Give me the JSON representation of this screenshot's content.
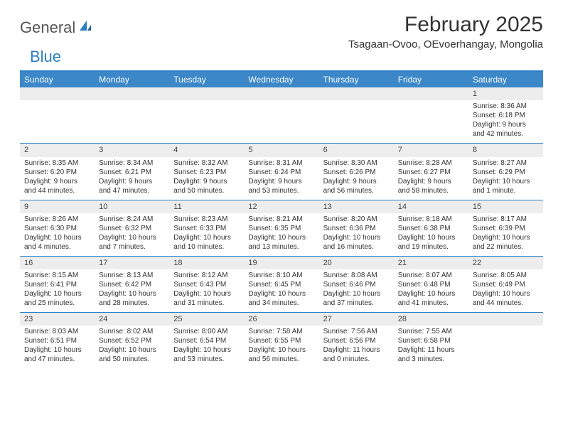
{
  "brand": {
    "part1": "General",
    "part2": "Blue"
  },
  "title": "February 2025",
  "location": "Tsagaan-Ovoo, OEvoerhangay, Mongolia",
  "colors": {
    "accent": "#2a7fc7",
    "header_bg": "#3b87c8",
    "daynum_bg": "#ededed",
    "text": "#333333",
    "background": "#ffffff"
  },
  "daynames": [
    "Sunday",
    "Monday",
    "Tuesday",
    "Wednesday",
    "Thursday",
    "Friday",
    "Saturday"
  ],
  "weeks": [
    [
      null,
      null,
      null,
      null,
      null,
      null,
      {
        "n": "1",
        "sr": "Sunrise: 8:36 AM",
        "ss": "Sunset: 6:18 PM",
        "dl": "Daylight: 9 hours and 42 minutes."
      }
    ],
    [
      {
        "n": "2",
        "sr": "Sunrise: 8:35 AM",
        "ss": "Sunset: 6:20 PM",
        "dl": "Daylight: 9 hours and 44 minutes."
      },
      {
        "n": "3",
        "sr": "Sunrise: 8:34 AM",
        "ss": "Sunset: 6:21 PM",
        "dl": "Daylight: 9 hours and 47 minutes."
      },
      {
        "n": "4",
        "sr": "Sunrise: 8:32 AM",
        "ss": "Sunset: 6:23 PM",
        "dl": "Daylight: 9 hours and 50 minutes."
      },
      {
        "n": "5",
        "sr": "Sunrise: 8:31 AM",
        "ss": "Sunset: 6:24 PM",
        "dl": "Daylight: 9 hours and 53 minutes."
      },
      {
        "n": "6",
        "sr": "Sunrise: 8:30 AM",
        "ss": "Sunset: 6:26 PM",
        "dl": "Daylight: 9 hours and 56 minutes."
      },
      {
        "n": "7",
        "sr": "Sunrise: 8:28 AM",
        "ss": "Sunset: 6:27 PM",
        "dl": "Daylight: 9 hours and 58 minutes."
      },
      {
        "n": "8",
        "sr": "Sunrise: 8:27 AM",
        "ss": "Sunset: 6:29 PM",
        "dl": "Daylight: 10 hours and 1 minute."
      }
    ],
    [
      {
        "n": "9",
        "sr": "Sunrise: 8:26 AM",
        "ss": "Sunset: 6:30 PM",
        "dl": "Daylight: 10 hours and 4 minutes."
      },
      {
        "n": "10",
        "sr": "Sunrise: 8:24 AM",
        "ss": "Sunset: 6:32 PM",
        "dl": "Daylight: 10 hours and 7 minutes."
      },
      {
        "n": "11",
        "sr": "Sunrise: 8:23 AM",
        "ss": "Sunset: 6:33 PM",
        "dl": "Daylight: 10 hours and 10 minutes."
      },
      {
        "n": "12",
        "sr": "Sunrise: 8:21 AM",
        "ss": "Sunset: 6:35 PM",
        "dl": "Daylight: 10 hours and 13 minutes."
      },
      {
        "n": "13",
        "sr": "Sunrise: 8:20 AM",
        "ss": "Sunset: 6:36 PM",
        "dl": "Daylight: 10 hours and 16 minutes."
      },
      {
        "n": "14",
        "sr": "Sunrise: 8:18 AM",
        "ss": "Sunset: 6:38 PM",
        "dl": "Daylight: 10 hours and 19 minutes."
      },
      {
        "n": "15",
        "sr": "Sunrise: 8:17 AM",
        "ss": "Sunset: 6:39 PM",
        "dl": "Daylight: 10 hours and 22 minutes."
      }
    ],
    [
      {
        "n": "16",
        "sr": "Sunrise: 8:15 AM",
        "ss": "Sunset: 6:41 PM",
        "dl": "Daylight: 10 hours and 25 minutes."
      },
      {
        "n": "17",
        "sr": "Sunrise: 8:13 AM",
        "ss": "Sunset: 6:42 PM",
        "dl": "Daylight: 10 hours and 28 minutes."
      },
      {
        "n": "18",
        "sr": "Sunrise: 8:12 AM",
        "ss": "Sunset: 6:43 PM",
        "dl": "Daylight: 10 hours and 31 minutes."
      },
      {
        "n": "19",
        "sr": "Sunrise: 8:10 AM",
        "ss": "Sunset: 6:45 PM",
        "dl": "Daylight: 10 hours and 34 minutes."
      },
      {
        "n": "20",
        "sr": "Sunrise: 8:08 AM",
        "ss": "Sunset: 6:46 PM",
        "dl": "Daylight: 10 hours and 37 minutes."
      },
      {
        "n": "21",
        "sr": "Sunrise: 8:07 AM",
        "ss": "Sunset: 6:48 PM",
        "dl": "Daylight: 10 hours and 41 minutes."
      },
      {
        "n": "22",
        "sr": "Sunrise: 8:05 AM",
        "ss": "Sunset: 6:49 PM",
        "dl": "Daylight: 10 hours and 44 minutes."
      }
    ],
    [
      {
        "n": "23",
        "sr": "Sunrise: 8:03 AM",
        "ss": "Sunset: 6:51 PM",
        "dl": "Daylight: 10 hours and 47 minutes."
      },
      {
        "n": "24",
        "sr": "Sunrise: 8:02 AM",
        "ss": "Sunset: 6:52 PM",
        "dl": "Daylight: 10 hours and 50 minutes."
      },
      {
        "n": "25",
        "sr": "Sunrise: 8:00 AM",
        "ss": "Sunset: 6:54 PM",
        "dl": "Daylight: 10 hours and 53 minutes."
      },
      {
        "n": "26",
        "sr": "Sunrise: 7:58 AM",
        "ss": "Sunset: 6:55 PM",
        "dl": "Daylight: 10 hours and 56 minutes."
      },
      {
        "n": "27",
        "sr": "Sunrise: 7:56 AM",
        "ss": "Sunset: 6:56 PM",
        "dl": "Daylight: 11 hours and 0 minutes."
      },
      {
        "n": "28",
        "sr": "Sunrise: 7:55 AM",
        "ss": "Sunset: 6:58 PM",
        "dl": "Daylight: 11 hours and 3 minutes."
      },
      null
    ]
  ]
}
